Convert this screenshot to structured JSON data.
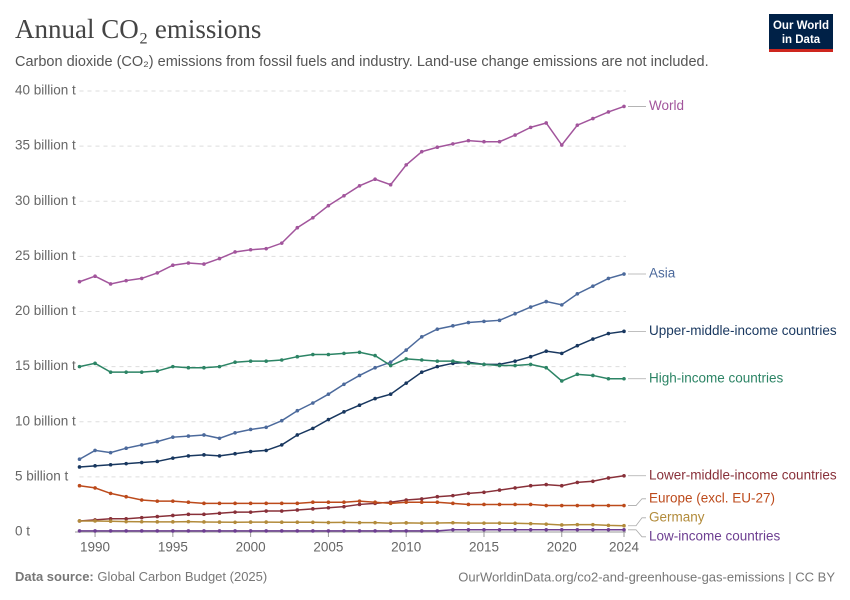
{
  "header": {
    "title": "Annual CO₂ emissions",
    "subtitle": "Carbon dioxide (CO₂) emissions from fossil fuels and industry. Land-use change emissions are not included.",
    "logo": [
      "Our World",
      "in Data"
    ]
  },
  "footer": {
    "source_label": "Data source:",
    "source": "Global Carbon Budget (2025)",
    "url": "OurWorldinData.org/co2-and-greenhouse-gas-emissions | CC BY"
  },
  "chart_data": {
    "type": "line",
    "x": [
      1989,
      1990,
      1991,
      1992,
      1993,
      1994,
      1995,
      1996,
      1997,
      1998,
      1999,
      2000,
      2001,
      2002,
      2003,
      2004,
      2005,
      2006,
      2007,
      2008,
      2009,
      2010,
      2011,
      2012,
      2013,
      2014,
      2015,
      2016,
      2017,
      2018,
      2019,
      2020,
      2021,
      2022,
      2023,
      2024
    ],
    "xlim": [
      1989,
      2024
    ],
    "xticks": [
      1990,
      1995,
      2000,
      2005,
      2010,
      2015,
      2020,
      2024
    ],
    "ylim": [
      0,
      40
    ],
    "yticks": [
      {
        "value": 0,
        "label": "0 t"
      },
      {
        "value": 5,
        "label": "5 billion t"
      },
      {
        "value": 10,
        "label": "10 billion t"
      },
      {
        "value": 15,
        "label": "15 billion t"
      },
      {
        "value": 20,
        "label": "20 billion t"
      },
      {
        "value": 25,
        "label": "25 billion t"
      },
      {
        "value": 30,
        "label": "30 billion t"
      },
      {
        "value": 35,
        "label": "35 billion t"
      },
      {
        "value": 40,
        "label": "40 billion t"
      }
    ],
    "grid": true,
    "series": [
      {
        "name": "World",
        "color": "#a2559c",
        "values": [
          22.7,
          23.2,
          22.5,
          22.8,
          23.0,
          23.5,
          24.2,
          24.4,
          24.3,
          24.8,
          25.4,
          25.6,
          25.7,
          26.2,
          27.6,
          28.5,
          29.6,
          30.5,
          31.4,
          32.0,
          31.5,
          33.3,
          34.5,
          34.9,
          35.2,
          35.5,
          35.4,
          35.4,
          36.0,
          36.7,
          37.1,
          35.1,
          36.9,
          37.5,
          38.1,
          38.6
        ]
      },
      {
        "name": "Asia",
        "color": "#4c6a9c",
        "values": [
          6.6,
          7.4,
          7.2,
          7.6,
          7.9,
          8.2,
          8.6,
          8.7,
          8.8,
          8.5,
          9.0,
          9.3,
          9.5,
          10.1,
          11.0,
          11.7,
          12.5,
          13.4,
          14.2,
          14.9,
          15.4,
          16.5,
          17.7,
          18.4,
          18.7,
          19.0,
          19.1,
          19.2,
          19.8,
          20.4,
          20.9,
          20.6,
          21.6,
          22.3,
          23.0,
          23.4
        ]
      },
      {
        "name": "Upper-middle-income countries",
        "color": "#18375f",
        "values": [
          5.9,
          6.0,
          6.1,
          6.2,
          6.3,
          6.4,
          6.7,
          6.9,
          7.0,
          6.9,
          7.1,
          7.3,
          7.4,
          7.9,
          8.8,
          9.4,
          10.2,
          10.9,
          11.5,
          12.1,
          12.5,
          13.5,
          14.5,
          15.0,
          15.3,
          15.4,
          15.2,
          15.2,
          15.5,
          15.9,
          16.4,
          16.2,
          16.9,
          17.5,
          18.0,
          18.2
        ]
      },
      {
        "name": "High-income countries",
        "color": "#2c8465",
        "values": [
          15.0,
          15.3,
          14.5,
          14.5,
          14.5,
          14.6,
          15.0,
          14.9,
          14.9,
          15.0,
          15.4,
          15.5,
          15.5,
          15.6,
          15.9,
          16.1,
          16.1,
          16.2,
          16.3,
          16.0,
          15.1,
          15.7,
          15.6,
          15.5,
          15.5,
          15.3,
          15.2,
          15.1,
          15.1,
          15.2,
          14.9,
          13.7,
          14.3,
          14.2,
          13.9,
          13.9
        ]
      },
      {
        "name": "Lower-middle-income countries",
        "color": "#883039",
        "values": [
          1.0,
          1.1,
          1.2,
          1.2,
          1.3,
          1.4,
          1.5,
          1.6,
          1.6,
          1.7,
          1.8,
          1.8,
          1.9,
          1.9,
          2.0,
          2.1,
          2.2,
          2.3,
          2.5,
          2.6,
          2.7,
          2.9,
          3.0,
          3.2,
          3.3,
          3.5,
          3.6,
          3.8,
          4.0,
          4.2,
          4.3,
          4.2,
          4.5,
          4.6,
          4.9,
          5.1
        ]
      },
      {
        "name": "Europe (excl. EU-27)",
        "color": "#bc4a1b",
        "values": [
          4.2,
          4.0,
          3.5,
          3.2,
          2.9,
          2.8,
          2.8,
          2.7,
          2.6,
          2.6,
          2.6,
          2.6,
          2.6,
          2.6,
          2.6,
          2.7,
          2.7,
          2.7,
          2.8,
          2.7,
          2.6,
          2.7,
          2.7,
          2.7,
          2.6,
          2.5,
          2.5,
          2.5,
          2.5,
          2.5,
          2.4,
          2.4,
          2.4,
          2.4,
          2.4,
          2.4
        ]
      },
      {
        "name": "Germany",
        "color": "#b28b3b",
        "values": [
          1.0,
          1.0,
          0.98,
          0.94,
          0.93,
          0.92,
          0.92,
          0.94,
          0.91,
          0.9,
          0.88,
          0.9,
          0.9,
          0.89,
          0.89,
          0.88,
          0.86,
          0.87,
          0.85,
          0.85,
          0.79,
          0.83,
          0.81,
          0.82,
          0.84,
          0.8,
          0.8,
          0.8,
          0.79,
          0.76,
          0.71,
          0.64,
          0.67,
          0.67,
          0.6,
          0.57
        ]
      },
      {
        "name": "Low-income countries",
        "color": "#6d3e91",
        "values": [
          0.1,
          0.1,
          0.1,
          0.1,
          0.1,
          0.1,
          0.1,
          0.1,
          0.1,
          0.1,
          0.1,
          0.1,
          0.1,
          0.1,
          0.1,
          0.1,
          0.1,
          0.1,
          0.1,
          0.1,
          0.1,
          0.1,
          0.1,
          0.1,
          0.2,
          0.2,
          0.2,
          0.2,
          0.2,
          0.2,
          0.2,
          0.2,
          0.2,
          0.2,
          0.2,
          0.2
        ]
      }
    ]
  }
}
